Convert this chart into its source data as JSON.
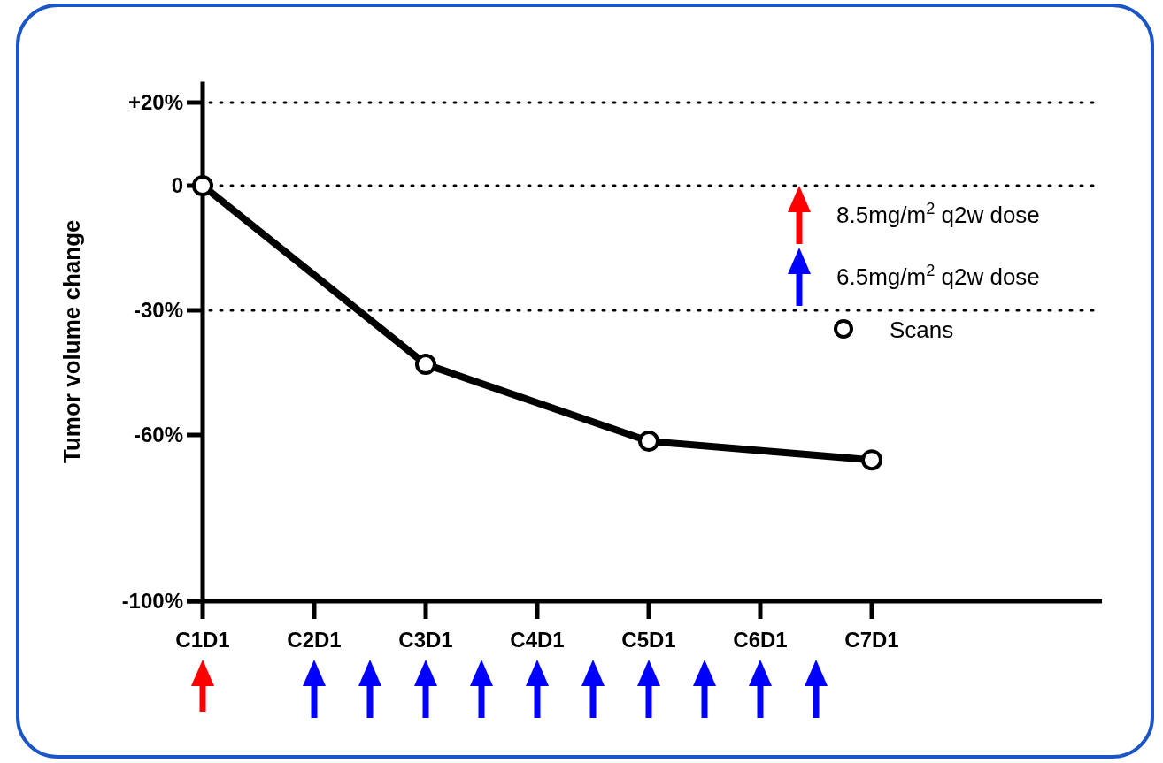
{
  "chart_data": {
    "type": "line",
    "ylabel": "Tumor volume change",
    "categories": [
      "C1D1",
      "C2D1",
      "C3D1",
      "C4D1",
      "C5D1",
      "C6D1",
      "C7D1",
      null,
      null
    ],
    "ylim": [
      -100,
      25
    ],
    "yticks": [
      {
        "value": 20,
        "label": "+20%"
      },
      0,
      {
        "value": -30,
        "label": "-30%"
      },
      {
        "value": -60,
        "label": "-60%"
      },
      {
        "value": -100,
        "label": "-100%"
      }
    ],
    "series": [
      {
        "name": "Scans",
        "marker": "circle",
        "color": "#000000",
        "x": [
          "C1D1",
          "C3D1",
          "C5D1",
          "C7D1"
        ],
        "values": [
          0,
          -43,
          -61.5,
          -66
        ]
      }
    ],
    "annotations": [
      "8.5mg/m$^{2}$ q2w dose",
      "6.5mg/m$^{2}$ q2w dose"
    ],
    "ref_lines": [
      {
        "axis": "y",
        "value": 20,
        "line_style": "dotted",
        "color": "#000000"
      },
      {
        "axis": "y",
        "value": 0,
        "line_style": "dotted",
        "color": "#000000"
      },
      {
        "axis": "y",
        "value": -30,
        "line_style": "dotted",
        "color": "#000000"
      }
    ],
    "legend": "top right"
  }
}
